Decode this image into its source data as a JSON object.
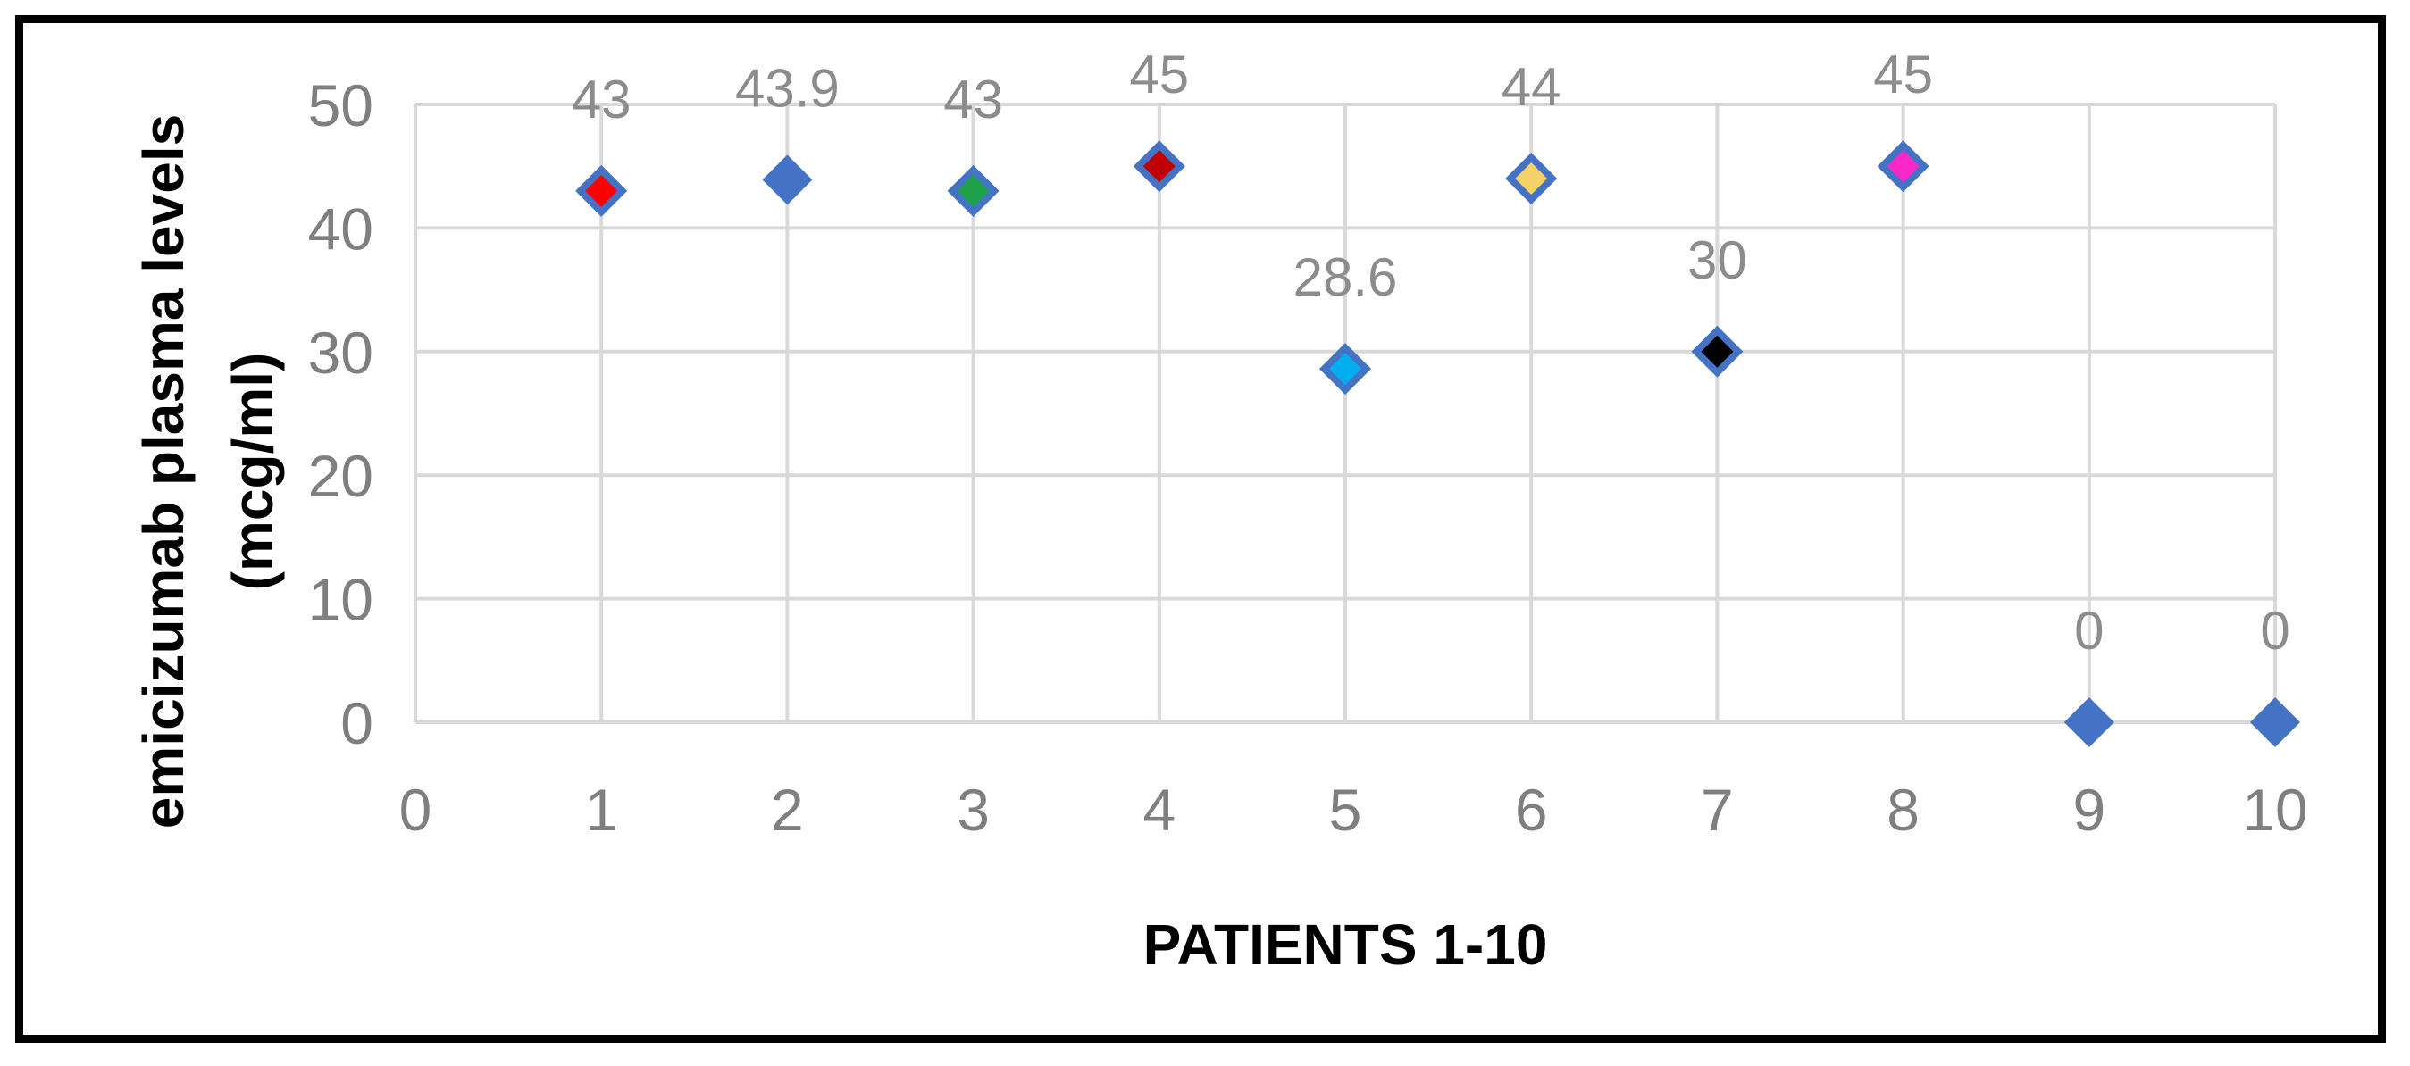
{
  "chart_data": {
    "type": "scatter",
    "title": "",
    "xlabel": "PATIENTS 1-10",
    "ylabel": "emicizumab plasma levels (mcg/ml)",
    "ylabel_lines": [
      "emicizumab plasma levels",
      "(mcg/ml)"
    ],
    "xlim": [
      0,
      10
    ],
    "ylim": [
      0,
      50
    ],
    "x_ticks": [
      "0",
      "1",
      "2",
      "3",
      "4",
      "5",
      "6",
      "7",
      "8",
      "9",
      "10"
    ],
    "y_ticks": [
      "0",
      "10",
      "20",
      "30",
      "40",
      "50"
    ],
    "grid": true,
    "legend": "none",
    "marker": "diamond",
    "categories": [
      1,
      2,
      3,
      4,
      5,
      6,
      7,
      8,
      9,
      10
    ],
    "values": [
      43,
      43.9,
      43,
      45,
      28.6,
      44,
      30,
      45,
      0,
      0
    ],
    "points": [
      {
        "x": 1,
        "y": 43,
        "label": "43",
        "fill": "#FF0000",
        "border": "#4472C4"
      },
      {
        "x": 2,
        "y": 43.9,
        "label": "43.9",
        "fill": "#4472C4",
        "border": ""
      },
      {
        "x": 3,
        "y": 43,
        "label": "43",
        "fill": "#1EA04B",
        "border": "#4472C4"
      },
      {
        "x": 4,
        "y": 45,
        "label": "45",
        "fill": "#C00000",
        "border": "#4472C4"
      },
      {
        "x": 5,
        "y": 28.6,
        "label": "28.6",
        "fill": "#00AEEF",
        "border": "#4472C4"
      },
      {
        "x": 6,
        "y": 44,
        "label": "44",
        "fill": "#F5D266",
        "border": "#4472C4"
      },
      {
        "x": 7,
        "y": 30,
        "label": "30",
        "fill": "#000000",
        "border": "#4472C4"
      },
      {
        "x": 8,
        "y": 45,
        "label": "45",
        "fill": "#FA28C8",
        "border": "#4472C4"
      },
      {
        "x": 9,
        "y": 0,
        "label": "0",
        "fill": "#4472C4",
        "border": ""
      },
      {
        "x": 10,
        "y": 0,
        "label": "0",
        "fill": "#4472C4",
        "border": ""
      }
    ],
    "colors": {
      "gridline": "#D9D9D9",
      "tick_label": "#7F7F7F",
      "data_label": "#8C8C8C",
      "axis_title": "#000000",
      "frame_border": "#000000",
      "plot_background": "#FFFFFF",
      "default_marker": "#4472C4"
    }
  }
}
